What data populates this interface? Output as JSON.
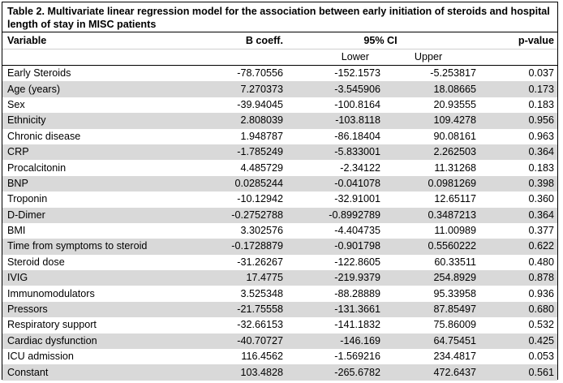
{
  "table": {
    "caption": "Table 2. Multivariate linear regression model for the association between early initiation of steroids and hospital length of stay in MISC patients",
    "headers": {
      "variable": "Variable",
      "b_coeff": "B coeff.",
      "ci": "95% CI",
      "p_value": "p-value",
      "lower": "Lower",
      "upper": "Upper"
    },
    "rows": [
      {
        "variable": "Early Steroids",
        "b": "-78.70556",
        "lower": "-152.1573",
        "upper": "-5.253817",
        "p": "0.037"
      },
      {
        "variable": "Age (years)",
        "b": "7.270373",
        "lower": "-3.545906",
        "upper": "18.08665",
        "p": "0.173"
      },
      {
        "variable": "Sex",
        "b": "-39.94045",
        "lower": "-100.8164",
        "upper": "20.93555",
        "p": "0.183"
      },
      {
        "variable": "Ethnicity",
        "b": "2.808039",
        "lower": "-103.8118",
        "upper": "109.4278",
        "p": "0.956"
      },
      {
        "variable": "Chronic disease",
        "b": "1.948787",
        "lower": "-86.18404",
        "upper": "90.08161",
        "p": "0.963"
      },
      {
        "variable": "CRP",
        "b": "-1.785249",
        "lower": "-5.833001",
        "upper": "2.262503",
        "p": "0.364"
      },
      {
        "variable": "Procalcitonin",
        "b": "4.485729",
        "lower": "-2.34122",
        "upper": "11.31268",
        "p": "0.183"
      },
      {
        "variable": "BNP",
        "b": "0.0285244",
        "lower": "-0.041078",
        "upper": "0.0981269",
        "p": "0.398"
      },
      {
        "variable": "Troponin",
        "b": "-10.12942",
        "lower": "-32.91001",
        "upper": "12.65117",
        "p": "0.360"
      },
      {
        "variable": "D-Dimer",
        "b": "-0.2752788",
        "lower": "-0.8992789",
        "upper": "0.3487213",
        "p": "0.364"
      },
      {
        "variable": "BMI",
        "b": "3.302576",
        "lower": "-4.404735",
        "upper": "11.00989",
        "p": "0.377"
      },
      {
        "variable": "Time from symptoms to steroid",
        "b": "-0.1728879",
        "lower": "-0.901798",
        "upper": "0.5560222",
        "p": "0.622"
      },
      {
        "variable": "Steroid dose",
        "b": "-31.26267",
        "lower": "-122.8605",
        "upper": "60.33511",
        "p": "0.480"
      },
      {
        "variable": "IVIG",
        "b": "17.4775",
        "lower": "-219.9379",
        "upper": "254.8929",
        "p": "0.878"
      },
      {
        "variable": "Immunomodulators",
        "b": "3.525348",
        "lower": "-88.28889",
        "upper": "95.33958",
        "p": "0.936"
      },
      {
        "variable": "Pressors",
        "b": "-21.75558",
        "lower": "-131.3661",
        "upper": "87.85497",
        "p": "0.680"
      },
      {
        "variable": "Respiratory support",
        "b": "-32.66153",
        "lower": "-141.1832",
        "upper": "75.86009",
        "p": "0.532"
      },
      {
        "variable": "Cardiac dysfunction",
        "b": "-40.70727",
        "lower": "-146.169",
        "upper": "64.75451",
        "p": "0.425"
      },
      {
        "variable": "ICU admission",
        "b": "116.4562",
        "lower": "-1.569216",
        "upper": "234.4817",
        "p": "0.053"
      },
      {
        "variable": "Constant",
        "b": "103.4828",
        "lower": "-265.6782",
        "upper": "472.6437",
        "p": "0.561"
      }
    ]
  }
}
